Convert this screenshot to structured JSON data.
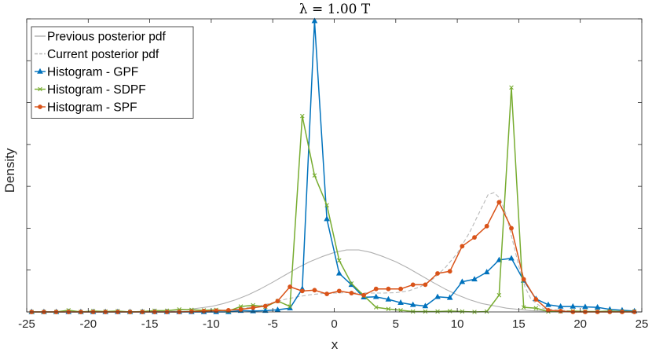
{
  "chart_data": {
    "type": "line",
    "title": "λ = 1.00 T",
    "xlabel": "x",
    "ylabel": "Density",
    "xlim": [
      -25,
      25
    ],
    "ylim": [
      0,
      0.7
    ],
    "xticks": [
      "-25",
      "-20",
      "-15",
      "-10",
      "-5",
      "0",
      "5",
      "10",
      "15",
      "20",
      "25"
    ],
    "legend_position": "top-left",
    "grid": false,
    "series": [
      {
        "name": "Previous posterior pdf",
        "style": "solid",
        "marker": "none",
        "color": "#b0b0b0",
        "x": [
          -25,
          -20,
          -16,
          -14,
          -12,
          -10,
          -9,
          -8,
          -7,
          -6,
          -5,
          -4,
          -3,
          -2,
          -1,
          0,
          1,
          2,
          3,
          4,
          5,
          6,
          7,
          8,
          9,
          10,
          11,
          12,
          14,
          16,
          20,
          25
        ],
        "y": [
          0,
          0,
          0.0005,
          0.002,
          0.0055,
          0.013,
          0.02,
          0.029,
          0.041,
          0.055,
          0.071,
          0.088,
          0.105,
          0.12,
          0.132,
          0.142,
          0.148,
          0.148,
          0.142,
          0.132,
          0.12,
          0.105,
          0.088,
          0.071,
          0.055,
          0.041,
          0.029,
          0.02,
          0.009,
          0.003,
          0,
          0
        ]
      },
      {
        "name": "Current posterior pdf",
        "style": "dashed",
        "marker": "none",
        "color": "#b8b8b8",
        "x": [
          -25,
          -15,
          -10,
          -8,
          -6,
          -5,
          -4,
          -3,
          -2,
          -1,
          0,
          1,
          2,
          3,
          4,
          5,
          6,
          7,
          8,
          9,
          10,
          11,
          11.5,
          12,
          12.5,
          13,
          13.5,
          14,
          14.5,
          15,
          15.5,
          16,
          17,
          20,
          25
        ],
        "y": [
          0,
          0,
          0.002,
          0.006,
          0.015,
          0.022,
          0.03,
          0.036,
          0.041,
          0.044,
          0.045,
          0.046,
          0.046,
          0.045,
          0.045,
          0.046,
          0.05,
          0.06,
          0.078,
          0.105,
          0.14,
          0.19,
          0.22,
          0.25,
          0.28,
          0.285,
          0.27,
          0.23,
          0.17,
          0.11,
          0.06,
          0.03,
          0.008,
          0,
          0
        ]
      },
      {
        "name": "Histogram - GPF",
        "style": "solid",
        "marker": "triangle",
        "color": "#0072bd",
        "x": [
          -24.6,
          -23.6,
          -22.6,
          -21.6,
          -20.6,
          -19.6,
          -18.6,
          -17.6,
          -16.6,
          -15.6,
          -14.6,
          -13.6,
          -12.6,
          -11.6,
          -10.6,
          -9.6,
          -8.6,
          -7.6,
          -6.6,
          -5.6,
          -4.6,
          -3.6,
          -2.6,
          -1.6,
          -0.6,
          0.4,
          1.4,
          2.4,
          3.4,
          4.4,
          5.4,
          6.4,
          7.4,
          8.4,
          9.4,
          10.4,
          11.4,
          12.4,
          13.4,
          14.4,
          15.4,
          16.4,
          17.4,
          18.4,
          19.4,
          20.4,
          21.4,
          22.4,
          23.4,
          24.4
        ],
        "y": [
          0,
          0,
          0,
          0,
          0,
          0,
          0,
          0,
          0,
          0,
          0,
          0,
          0,
          0,
          0,
          0,
          0,
          0.003,
          0.002,
          0.003,
          0.005,
          0.009,
          0.055,
          0.695,
          0.222,
          0.092,
          0.065,
          0.035,
          0.036,
          0.03,
          0.022,
          0.017,
          0.014,
          0.036,
          0.034,
          0.072,
          0.078,
          0.095,
          0.124,
          0.128,
          0.075,
          0.031,
          0.017,
          0.013,
          0.013,
          0.012,
          0.011,
          0.006,
          0.004,
          0.002
        ]
      },
      {
        "name": "Histogram - SDPF",
        "style": "solid",
        "marker": "x",
        "color": "#77ac30",
        "x": [
          -24.6,
          -23.6,
          -22.6,
          -21.6,
          -20.6,
          -19.6,
          -18.6,
          -17.6,
          -16.6,
          -15.6,
          -14.6,
          -13.6,
          -12.6,
          -11.6,
          -10.6,
          -9.6,
          -8.6,
          -7.6,
          -6.6,
          -5.6,
          -4.6,
          -3.6,
          -2.6,
          -1.6,
          -0.6,
          0.4,
          1.4,
          2.4,
          3.4,
          4.4,
          5.4,
          6.4,
          7.4,
          8.4,
          9.4,
          10.4,
          11.4,
          12.4,
          13.4,
          14.4,
          15.4,
          16.4,
          17.4,
          18.4,
          19.4,
          20.4,
          21.4,
          22.4,
          23.4,
          24.4
        ],
        "y": [
          0,
          0,
          0,
          0.004,
          0,
          0.002,
          0.001,
          0.002,
          0,
          0.001,
          0.003,
          0.003,
          0.006,
          0.005,
          0.004,
          0.005,
          0.002,
          0.013,
          0.016,
          0.012,
          0.026,
          0.013,
          0.468,
          0.326,
          0.255,
          0.123,
          0.068,
          0.039,
          0.011,
          0.007,
          0.004,
          0.001,
          0.001,
          0.001,
          0.002,
          0.001,
          0,
          0.001,
          0.04,
          0.536,
          0.011,
          0.009,
          0.001,
          0.001,
          0.002,
          0.001,
          0.001,
          0.002,
          0.001,
          0.001
        ]
      },
      {
        "name": "Histogram - SPF",
        "style": "solid",
        "marker": "circle",
        "color": "#d95319",
        "x": [
          -24.6,
          -23.6,
          -22.6,
          -21.6,
          -20.6,
          -19.6,
          -18.6,
          -17.6,
          -16.6,
          -15.6,
          -14.6,
          -13.6,
          -12.6,
          -11.6,
          -10.6,
          -9.6,
          -8.6,
          -7.6,
          -6.6,
          -5.6,
          -4.6,
          -3.6,
          -2.6,
          -1.6,
          -0.6,
          0.4,
          1.4,
          2.4,
          3.4,
          4.4,
          5.4,
          6.4,
          7.4,
          8.4,
          9.4,
          10.4,
          11.4,
          12.4,
          13.4,
          14.4,
          15.4,
          16.4,
          17.4,
          18.4,
          19.4,
          20.4,
          21.4,
          22.4,
          23.4,
          24.4
        ],
        "y": [
          0,
          0,
          0,
          0,
          0,
          0,
          0,
          0,
          0,
          0,
          0,
          0,
          0,
          0.001,
          0.002,
          0.003,
          0.004,
          0.006,
          0.01,
          0.014,
          0.026,
          0.06,
          0.05,
          0.052,
          0.043,
          0.05,
          0.045,
          0.04,
          0.055,
          0.055,
          0.055,
          0.065,
          0.065,
          0.092,
          0.097,
          0.157,
          0.178,
          0.205,
          0.262,
          0.2,
          0.078,
          0.03,
          0.004,
          0.002,
          0,
          0,
          0,
          0,
          0,
          0
        ]
      }
    ]
  }
}
